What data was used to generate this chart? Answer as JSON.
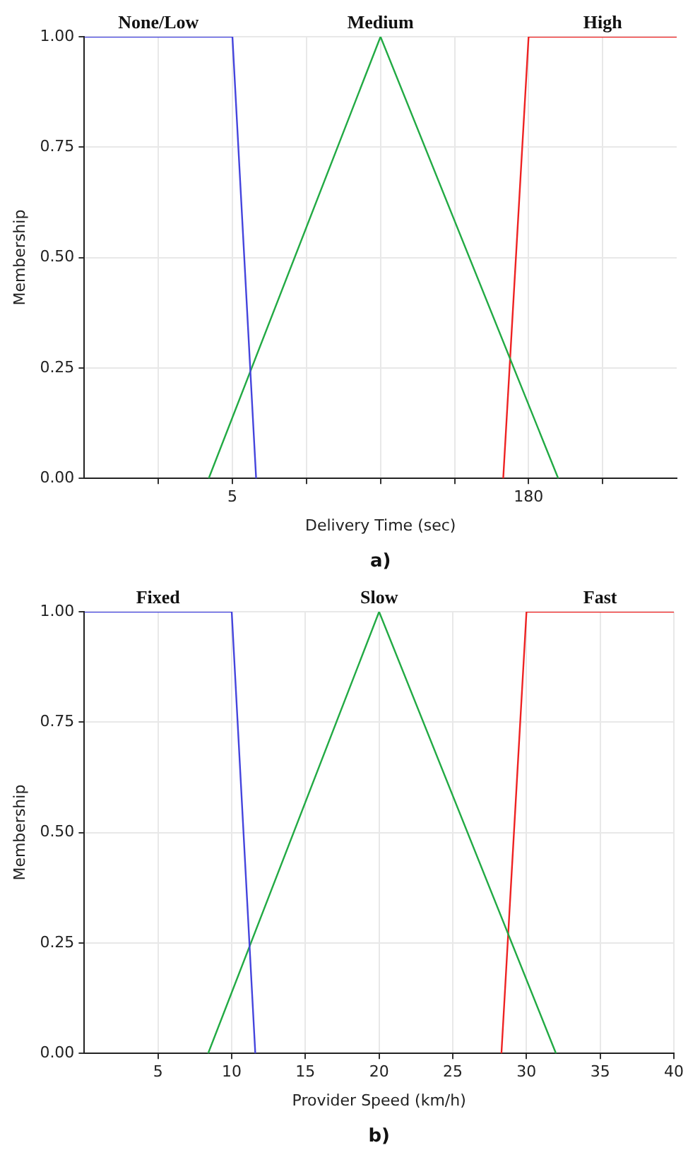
{
  "chart_data": [
    {
      "type": "line",
      "xlabel": "Delivery Time (sec)",
      "ylabel": "Membership",
      "annotations": [
        "a)"
      ],
      "xlim": [
        -82.5,
        267.5
      ],
      "xticks": [
        {
          "value": -38.75,
          "label": null
        },
        5,
        {
          "value": 48.75,
          "label": null
        },
        {
          "value": 92.5,
          "label": null
        },
        {
          "value": 136.25,
          "label": null
        },
        180,
        {
          "value": 223.75,
          "label": null
        }
      ],
      "ylim": [
        0,
        1
      ],
      "yticks": [
        {
          "value": 0,
          "label": "0.00"
        },
        {
          "value": 0.25,
          "label": "0.25"
        },
        {
          "value": 0.5,
          "label": "0.50"
        },
        {
          "value": 0.75,
          "label": "0.75"
        },
        {
          "value": 1,
          "label": "1.00"
        }
      ],
      "grid": true,
      "series": [
        {
          "name": "None/Low",
          "color": "#4444dd",
          "x": [
            -82.5,
            5,
            19
          ],
          "values": [
            1,
            1,
            0
          ]
        },
        {
          "name": "Medium",
          "color": "#22aa44",
          "x": [
            -9,
            92.5,
            197.5
          ],
          "values": [
            0,
            1,
            0
          ]
        },
        {
          "name": "High",
          "color": "#ee2222",
          "x": [
            165,
            180,
            267.5
          ],
          "values": [
            0,
            1,
            1
          ]
        }
      ]
    },
    {
      "type": "line",
      "xlabel": "Provider Speed (km/h)",
      "ylabel": "Membership",
      "annotations": [
        "b)"
      ],
      "xlim": [
        0,
        40
      ],
      "xticks": [
        5,
        10,
        15,
        20,
        25,
        30,
        35,
        40
      ],
      "ylim": [
        0,
        1
      ],
      "yticks": [
        {
          "value": 0,
          "label": "0.00"
        },
        {
          "value": 0.25,
          "label": "0.25"
        },
        {
          "value": 0.5,
          "label": "0.50"
        },
        {
          "value": 0.75,
          "label": "0.75"
        },
        {
          "value": 1,
          "label": "1.00"
        }
      ],
      "grid": true,
      "series": [
        {
          "name": "Fixed",
          "color": "#4444dd",
          "x": [
            0,
            10,
            11.6
          ],
          "values": [
            1,
            1,
            0
          ]
        },
        {
          "name": "Slow",
          "color": "#22aa44",
          "x": [
            8.4,
            20,
            32
          ],
          "values": [
            0,
            1,
            0
          ]
        },
        {
          "name": "Fast",
          "color": "#ee2222",
          "x": [
            28.3,
            30,
            40
          ],
          "values": [
            0,
            1,
            1
          ]
        }
      ]
    }
  ]
}
